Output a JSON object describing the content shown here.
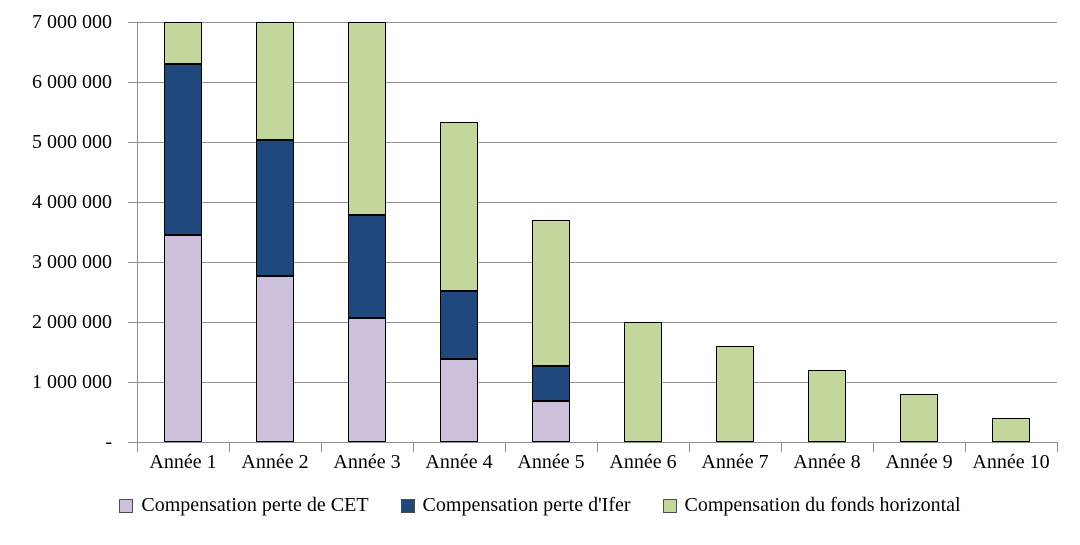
{
  "chart_data": {
    "type": "bar",
    "stacked": true,
    "title": "",
    "xlabel": "",
    "ylabel": "",
    "categories": [
      "Année 1",
      "Année 2",
      "Année 3",
      "Année 4",
      "Année 5",
      "Année 6",
      "Année 7",
      "Année 8",
      "Année 9",
      "Année 10"
    ],
    "series": [
      {
        "name": "Compensation perte de CET",
        "color": "#CCC0DA",
        "values": [
          3450000,
          2760000,
          2070000,
          1380000,
          690000,
          0,
          0,
          0,
          0,
          0
        ]
      },
      {
        "name": "Compensation perte d'Ifer",
        "color": "#1F497D",
        "values": [
          2850000,
          2280000,
          1710000,
          1140000,
          570000,
          0,
          0,
          0,
          0,
          0
        ]
      },
      {
        "name": "Compensation du fonds horizontal",
        "color": "#C3D69B",
        "values": [
          700000,
          1960000,
          3220000,
          2810000,
          2440000,
          2000000,
          1600000,
          1200000,
          800000,
          400000
        ]
      }
    ],
    "totals": [
      7000000,
      7000000,
      7000000,
      5330000,
      3700000,
      2000000,
      1600000,
      1200000,
      800000,
      400000
    ],
    "ylim": [
      0,
      7000000
    ],
    "y_tick_interval": 1000000,
    "y_tick_labels_top_down": [
      "7 000 000",
      "6 000 000",
      "5 000 000",
      "4 000 000",
      "3 000 000",
      "2 000 000",
      "1 000 000",
      "-"
    ],
    "grid": "horizontal",
    "gridline_color": "#8f8f8f",
    "bar_border_color": "#000000",
    "legend_position": "bottom"
  }
}
